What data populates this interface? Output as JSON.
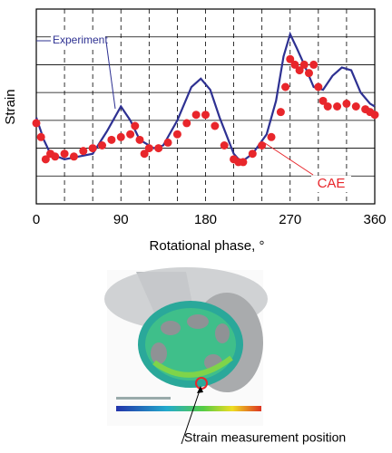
{
  "chart_data": {
    "type": "line",
    "y_axis_label": "Strain",
    "x_axis_label": "Rotational phase, °",
    "xlim": [
      0,
      360
    ],
    "xticks": [
      0,
      90,
      180,
      270,
      360
    ],
    "xminor_ticks": [
      30,
      60,
      120,
      150,
      210,
      240,
      300,
      330
    ],
    "ylim": [
      0,
      7
    ],
    "yticks": [
      1,
      2,
      3,
      4,
      5,
      6
    ],
    "ytick_labels_shown": false,
    "grid": true,
    "series": [
      {
        "name": "Experiment",
        "color": "#2e3192",
        "style": "line",
        "x": [
          0,
          8,
          15,
          30,
          45,
          60,
          75,
          90,
          100,
          110,
          125,
          135,
          150,
          165,
          175,
          185,
          195,
          210,
          218,
          230,
          245,
          255,
          263,
          270,
          277,
          285,
          295,
          305,
          315,
          325,
          335,
          345,
          355,
          360
        ],
        "values": [
          3.1,
          2.3,
          1.8,
          1.6,
          1.7,
          1.8,
          2.6,
          3.5,
          3.0,
          2.3,
          2.0,
          2.1,
          3.0,
          4.2,
          4.5,
          4.1,
          3.1,
          1.8,
          1.5,
          1.8,
          2.5,
          3.7,
          5.3,
          6.1,
          5.6,
          5.0,
          4.2,
          4.1,
          4.6,
          4.9,
          4.8,
          4.0,
          3.6,
          3.5
        ]
      },
      {
        "name": "CAE",
        "color": "#e8262b",
        "style": "dots",
        "x": [
          0,
          5,
          10,
          15,
          20,
          30,
          40,
          50,
          60,
          70,
          80,
          90,
          100,
          105,
          110,
          115,
          120,
          130,
          140,
          150,
          160,
          170,
          180,
          190,
          200,
          210,
          215,
          220,
          230,
          240,
          250,
          260,
          265,
          270,
          275,
          280,
          285,
          290,
          295,
          300,
          305,
          310,
          320,
          330,
          340,
          350,
          355,
          360
        ],
        "values": [
          2.9,
          2.4,
          1.6,
          1.8,
          1.7,
          1.8,
          1.7,
          1.9,
          2.0,
          2.1,
          2.3,
          2.4,
          2.5,
          2.8,
          2.3,
          1.8,
          2.0,
          2.0,
          2.2,
          2.5,
          2.9,
          3.2,
          3.2,
          2.8,
          2.1,
          1.6,
          1.5,
          1.5,
          1.8,
          2.1,
          2.4,
          3.3,
          4.2,
          5.2,
          5.0,
          4.8,
          5.0,
          4.7,
          5.0,
          4.2,
          3.7,
          3.5,
          3.5,
          3.6,
          3.5,
          3.4,
          3.3,
          3.2
        ]
      }
    ]
  },
  "figure_caption": "Strain measurement position"
}
